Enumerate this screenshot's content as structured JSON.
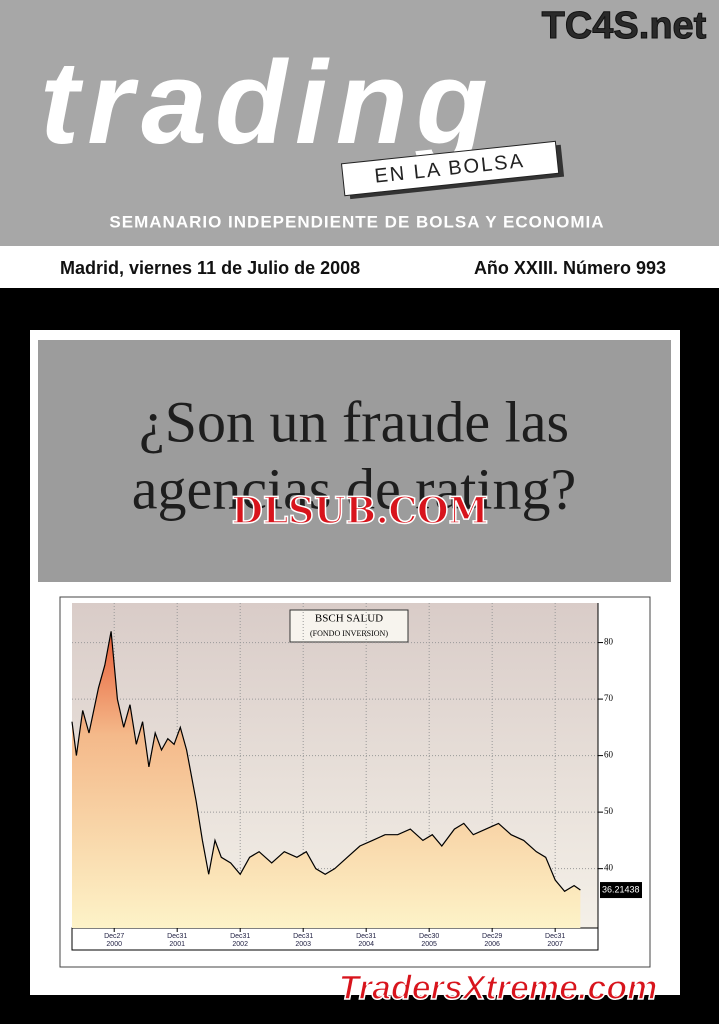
{
  "masthead": {
    "watermark": "TC4S.net",
    "title": "trading",
    "subtitle": "EN LA BOLSA",
    "tagline": "SEMANARIO INDEPENDIENTE DE BOLSA Y ECONOMIA"
  },
  "dateline": {
    "date": "Madrid, viernes 11 de Julio de 2008",
    "issue": "Año XXIII. Número 993"
  },
  "headline": {
    "lines": [
      "¿Son un fraude las",
      "agencias de rating?"
    ],
    "watermark": "DLSUB.COM"
  },
  "footer_watermark": "TradersXtreme.com",
  "chart_data": {
    "type": "area",
    "title": "BSCH SALUD",
    "subtitle": "(FONDO INVERSION)",
    "x": [
      2000.33,
      2000.4,
      2000.5,
      2000.6,
      2000.75,
      2000.85,
      2000.95,
      2001.05,
      2001.15,
      2001.25,
      2001.35,
      2001.45,
      2001.55,
      2001.65,
      2001.75,
      2001.85,
      2001.95,
      2002.05,
      2002.15,
      2002.3,
      2002.4,
      2002.5,
      2002.6,
      2002.7,
      2002.85,
      2003.0,
      2003.15,
      2003.3,
      2003.5,
      2003.7,
      2003.9,
      2004.05,
      2004.2,
      2004.35,
      2004.5,
      2004.7,
      2004.9,
      2005.1,
      2005.3,
      2005.5,
      2005.7,
      2005.9,
      2006.05,
      2006.2,
      2006.4,
      2006.55,
      2006.7,
      2006.9,
      2007.1,
      2007.3,
      2007.5,
      2007.7,
      2007.85,
      2008.0,
      2008.15,
      2008.3,
      2008.4
    ],
    "values": [
      66,
      60,
      68,
      64,
      72,
      76,
      82,
      70,
      65,
      69,
      62,
      66,
      58,
      64,
      61,
      63,
      62,
      65,
      61,
      52,
      45,
      39,
      45,
      42,
      41,
      39,
      42,
      43,
      41,
      43,
      42,
      43,
      40,
      39,
      40,
      42,
      44,
      45,
      46,
      46,
      47,
      45,
      46,
      44,
      47,
      48,
      46,
      47,
      48,
      46,
      45,
      43,
      42,
      38,
      36,
      37,
      36.21438
    ],
    "last_value_label": "36.21438",
    "color": "#000000",
    "xlim": [
      2000.33,
      2008.68
    ],
    "xticks": [
      {
        "value": 2001.0,
        "label": "Dec27"
      },
      {
        "value": 2002.0,
        "label": "Dec31"
      },
      {
        "value": 2003.0,
        "label": "Dec31"
      },
      {
        "value": 2004.0,
        "label": "Dec31"
      },
      {
        "value": 2005.0,
        "label": "Dec31"
      },
      {
        "value": 2006.0,
        "label": "Dec30"
      },
      {
        "value": 2007.0,
        "label": "Dec29"
      },
      {
        "value": 2008.0,
        "label": "Dec31"
      }
    ],
    "xtick_sublabels": [
      "2000",
      "2001",
      "2002",
      "2003",
      "2004",
      "2005",
      "2006",
      "2007"
    ],
    "ylim": [
      29.5,
      87
    ],
    "yticks": [
      40,
      50,
      60,
      70,
      80
    ],
    "grid": true
  }
}
